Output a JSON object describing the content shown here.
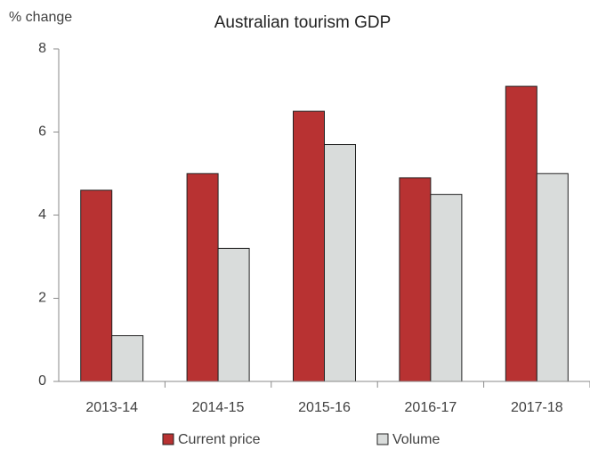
{
  "chart_data": {
    "type": "bar",
    "title": "Australian tourism GDP",
    "y_label": "% change",
    "categories": [
      "2013-14",
      "2014-15",
      "2015-16",
      "2016-17",
      "2017-18"
    ],
    "series": [
      {
        "name": "Current price",
        "color": "#b83232",
        "values": [
          4.6,
          5.0,
          6.5,
          4.9,
          7.1
        ]
      },
      {
        "name": "Volume",
        "color": "#d9dcdb",
        "values": [
          1.1,
          3.2,
          5.7,
          4.5,
          5.0
        ]
      }
    ],
    "ylim": [
      0,
      8
    ],
    "yticks": [
      0,
      2,
      4,
      6,
      8
    ],
    "grid": false,
    "legend": "bottom"
  }
}
